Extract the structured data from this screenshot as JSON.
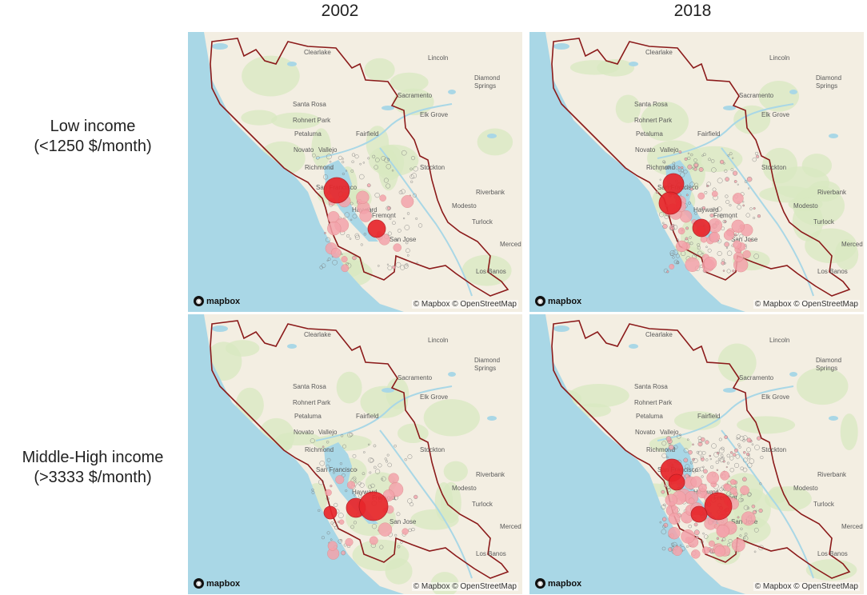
{
  "columns": [
    "2002",
    "2018"
  ],
  "rows": [
    {
      "label_line1": "Low income",
      "label_line2": "(<1250 $/month)"
    },
    {
      "label_line1": "Middle-High income",
      "label_line2": "(>3333 $/month)"
    }
  ],
  "map": {
    "attribution": "© Mapbox © OpenStreetMap",
    "logo_text": "mapbox",
    "logo_icon": "mapbox-logo-icon",
    "cities": [
      "Clearlake",
      "Lincoln",
      "Diamond",
      "Springs",
      "Sacramento",
      "Santa Rosa",
      "Rohnert Park",
      "Elk Grove",
      "Fairfield",
      "Petaluma",
      "Novato",
      "Vallejo",
      "Richmond",
      "San Francisco",
      "Stockton",
      "Hayward",
      "Fremont",
      "Riverbank",
      "Modesto",
      "Turlock",
      "San Jose",
      "Merced",
      "Los Banos"
    ],
    "colors": {
      "water": "#a9d7e6",
      "land": "#f3eee2",
      "green": "#d8e8c0",
      "boundary": "#8b1a1a",
      "strong_circle": "#e8262b",
      "light_circle": "#f4a3ab"
    }
  },
  "panels": [
    {
      "id": "low-2002",
      "intensity": 0.25,
      "large_clusters": 2
    },
    {
      "id": "low-2018",
      "intensity": 0.55,
      "large_clusters": 3
    },
    {
      "id": "high-2002",
      "intensity": 0.2,
      "large_clusters": 3
    },
    {
      "id": "high-2018",
      "intensity": 0.85,
      "large_clusters": 4
    }
  ]
}
